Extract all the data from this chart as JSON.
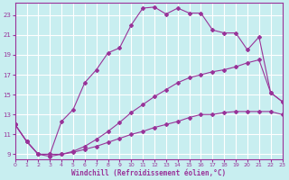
{
  "xlabel": "Windchill (Refroidissement éolien,°C)",
  "bg_color": "#c8eef0",
  "line_color": "#993399",
  "grid_color": "#ffffff",
  "xlim": [
    0,
    23
  ],
  "ylim": [
    8.5,
    24.2
  ],
  "line_top_x": [
    0,
    1,
    2,
    3,
    4,
    5,
    6,
    7,
    8,
    9,
    10,
    11,
    12,
    13,
    14,
    15,
    16,
    17,
    18,
    19,
    20,
    21,
    22,
    23
  ],
  "line_top_y": [
    12.0,
    10.3,
    9.0,
    9.0,
    12.3,
    13.5,
    16.2,
    17.5,
    19.2,
    19.7,
    22.0,
    23.7,
    23.8,
    23.1,
    23.7,
    23.2,
    23.2,
    21.5,
    21.2,
    21.2,
    19.5,
    20.8,
    15.2,
    14.3
  ],
  "line_mid_x": [
    0,
    1,
    2,
    3,
    4,
    5,
    6,
    7,
    8,
    9,
    10,
    11,
    12,
    13,
    14,
    15,
    16,
    17,
    18,
    19,
    20,
    21,
    22,
    23
  ],
  "line_mid_y": [
    12.0,
    10.3,
    9.0,
    9.0,
    9.0,
    9.3,
    9.8,
    10.5,
    11.3,
    12.2,
    13.2,
    14.0,
    14.8,
    15.5,
    16.2,
    16.7,
    17.0,
    17.3,
    17.5,
    17.8,
    18.2,
    18.5,
    15.2,
    14.3
  ],
  "line_bot_x": [
    0,
    1,
    2,
    3,
    4,
    5,
    6,
    7,
    8,
    9,
    10,
    11,
    12,
    13,
    14,
    15,
    16,
    17,
    18,
    19,
    20,
    21,
    22,
    23
  ],
  "line_bot_y": [
    12.0,
    10.3,
    9.0,
    8.8,
    9.0,
    9.2,
    9.5,
    9.8,
    10.2,
    10.6,
    11.0,
    11.3,
    11.7,
    12.0,
    12.3,
    12.7,
    13.0,
    13.0,
    13.2,
    13.3,
    13.3,
    13.3,
    13.3,
    13.0
  ]
}
